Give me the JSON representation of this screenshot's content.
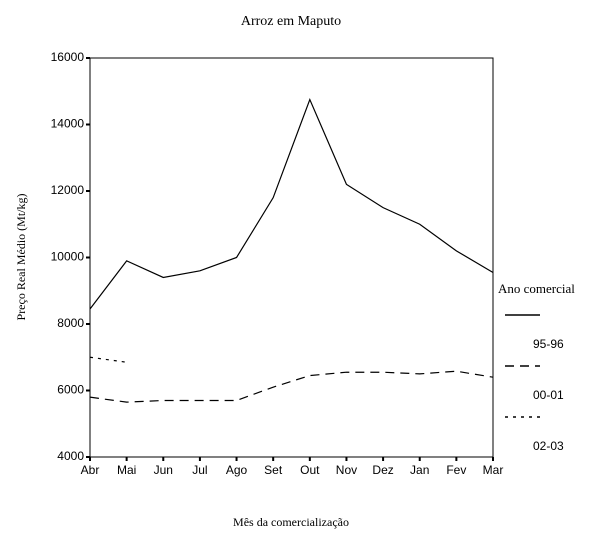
{
  "chart_data": {
    "type": "line",
    "title": "Arroz em Maputo",
    "x_label": "Mês da comercialização",
    "y_label": "Preço Real Médio (Mt/kg)",
    "categories": [
      "Abr",
      "Mai",
      "Jun",
      "Jul",
      "Ago",
      "Set",
      "Out",
      "Nov",
      "Dez",
      "Jan",
      "Fev",
      "Mar"
    ],
    "series": [
      {
        "name": "95-96",
        "color": "#000000",
        "style": "solid",
        "values": [
          8450,
          9900,
          9400,
          9600,
          10000,
          11800,
          14750,
          12200,
          11500,
          11000,
          10200,
          9550
        ]
      },
      {
        "name": "00-01",
        "color": "#000000",
        "style": "dashed",
        "values": [
          5800,
          5650,
          5700,
          5700,
          5700,
          6100,
          6450,
          6550,
          6550,
          6500,
          6580,
          6400
        ]
      },
      {
        "name": "02-03",
        "color": "#000000",
        "style": "dotted",
        "values": [
          7000,
          6850,
          null,
          null,
          null,
          null,
          null,
          null,
          null,
          null,
          null,
          null
        ]
      }
    ],
    "legend_title": "Ano comercial",
    "legend": "right",
    "ylim": [
      4000,
      16000
    ],
    "yticks": [
      4000,
      6000,
      8000,
      10000,
      12000,
      14000,
      16000
    ],
    "grid": false
  }
}
